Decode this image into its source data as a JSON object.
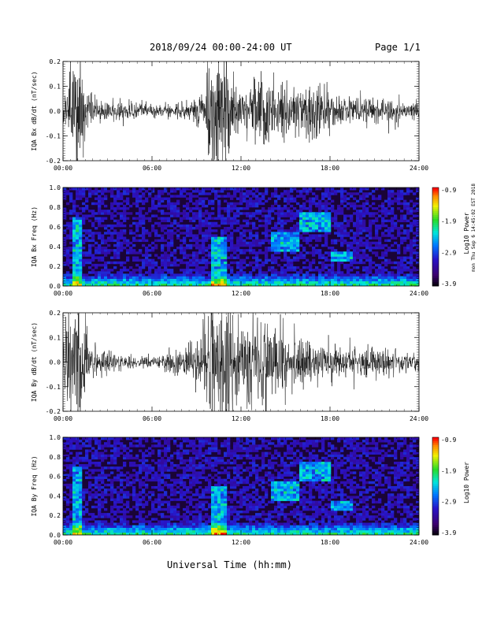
{
  "header": {
    "title": "2018/09/24   00:00-24:00 UT",
    "page": "Page 1/1",
    "side_note": "mon Thu Sep 6 14:45:02 EST 2018"
  },
  "xlabel": "Universal Time (hh:mm)",
  "x_ticks": [
    "00:00",
    "06:00",
    "12:00",
    "18:00",
    "24:00"
  ],
  "chart_data": [
    {
      "type": "line",
      "ylabel": "IQA Bx dB/dt (nT/sec)",
      "x_range_hours": [
        0,
        24
      ],
      "ylim": [
        -0.2,
        0.2
      ],
      "y_ticks": [
        "0.2",
        "0.1",
        "0.0",
        "-0.1",
        "-0.2"
      ],
      "activity_envelope": {
        "hours": [
          0,
          0.5,
          1,
          1.5,
          2,
          3,
          4,
          5,
          6,
          7,
          8,
          9,
          9.5,
          10,
          10.5,
          11,
          11.5,
          12,
          12.5,
          13,
          13.5,
          14,
          15,
          16,
          17,
          17.5,
          18,
          19,
          20,
          21,
          22,
          23,
          24
        ],
        "amplitude": [
          0.05,
          0.15,
          0.22,
          0.08,
          0.04,
          0.03,
          0.03,
          0.025,
          0.02,
          0.02,
          0.025,
          0.04,
          0.05,
          0.22,
          0.22,
          0.18,
          0.1,
          0.06,
          0.07,
          0.12,
          0.12,
          0.1,
          0.08,
          0.07,
          0.08,
          0.1,
          0.06,
          0.05,
          0.05,
          0.04,
          0.04,
          0.03,
          0.03
        ]
      }
    },
    {
      "type": "heatmap",
      "ylabel": "IQA Bx Freq (Hz)",
      "x_range_hours": [
        0,
        24
      ],
      "ylim": [
        0.0,
        1.0
      ],
      "y_ticks": [
        "1.0",
        "0.8",
        "0.6",
        "0.4",
        "0.2",
        "0.0"
      ],
      "colorbar_label": "Log10 Power",
      "colorbar_ticks": [
        "-0.9",
        "-1.9",
        "-2.9",
        "-3.9"
      ],
      "colorbar_range": [
        -3.9,
        -0.9
      ],
      "features": [
        {
          "hours": [
            0.6,
            1.2
          ],
          "freq": [
            0.0,
            0.7
          ]
        },
        {
          "hours": [
            10,
            11
          ],
          "freq": [
            0.0,
            0.5
          ]
        },
        {
          "hours": [
            14,
            16
          ],
          "freq": [
            0.35,
            0.55
          ]
        },
        {
          "hours": [
            16,
            18
          ],
          "freq": [
            0.55,
            0.75
          ]
        },
        {
          "hours": [
            18,
            19.5
          ],
          "freq": [
            0.25,
            0.35
          ]
        }
      ]
    },
    {
      "type": "line",
      "ylabel": "IQA By dB/dt (nT/sec)",
      "x_range_hours": [
        0,
        24
      ],
      "ylim": [
        -0.2,
        0.2
      ],
      "y_ticks": [
        "0.2",
        "0.1",
        "0.0",
        "-0.1",
        "-0.2"
      ],
      "activity_envelope": {
        "hours": [
          0,
          0.5,
          1,
          1.5,
          2,
          3,
          4,
          5,
          6,
          7,
          8,
          9,
          9.5,
          10,
          10.5,
          11,
          11.5,
          12,
          12.5,
          13,
          13.5,
          14,
          15,
          16,
          17,
          17.5,
          18,
          19,
          20,
          21,
          22,
          23,
          24
        ],
        "amplitude": [
          0.08,
          0.18,
          0.22,
          0.12,
          0.06,
          0.04,
          0.025,
          0.02,
          0.02,
          0.03,
          0.04,
          0.07,
          0.12,
          0.22,
          0.22,
          0.22,
          0.15,
          0.1,
          0.14,
          0.18,
          0.16,
          0.12,
          0.09,
          0.08,
          0.07,
          0.07,
          0.06,
          0.05,
          0.05,
          0.045,
          0.04,
          0.035,
          0.03
        ]
      }
    },
    {
      "type": "heatmap",
      "ylabel": "IQA By Freq (Hz)",
      "x_range_hours": [
        0,
        24
      ],
      "ylim": [
        0.0,
        1.0
      ],
      "y_ticks": [
        "1.0",
        "0.8",
        "0.6",
        "0.4",
        "0.2",
        "0.0"
      ],
      "colorbar_label": "Log10 Power",
      "colorbar_ticks": [
        "-0.9",
        "-1.9",
        "-2.9",
        "-3.9"
      ],
      "colorbar_range": [
        -3.9,
        -0.9
      ],
      "features": [
        {
          "hours": [
            0.6,
            1.2
          ],
          "freq": [
            0.0,
            0.7
          ]
        },
        {
          "hours": [
            10,
            11
          ],
          "freq": [
            0.0,
            0.5
          ]
        },
        {
          "hours": [
            14,
            16
          ],
          "freq": [
            0.35,
            0.55
          ]
        },
        {
          "hours": [
            16,
            18
          ],
          "freq": [
            0.55,
            0.75
          ]
        },
        {
          "hours": [
            18,
            19.5
          ],
          "freq": [
            0.25,
            0.35
          ]
        }
      ]
    }
  ]
}
